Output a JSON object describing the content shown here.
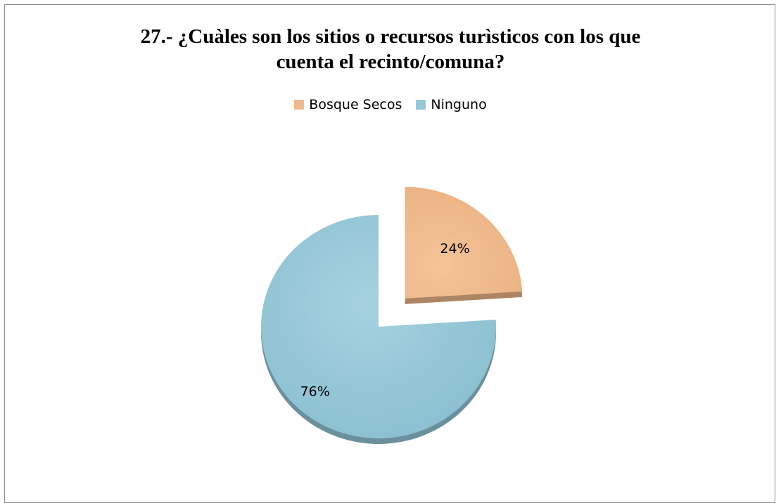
{
  "chart_data": {
    "type": "pie",
    "title_line1": "27.- ¿Cuàles son los sitios o recursos turìsticos con los que",
    "title_line2": "cuenta el recinto/comuna?",
    "slices": [
      {
        "label": "Bosque Secos",
        "value": 24,
        "data_label": "24%",
        "color": "#F1B98B",
        "exploded": true
      },
      {
        "label": "Ninguno",
        "value": 76,
        "data_label": "76%",
        "color": "#94C7D8",
        "exploded": false
      }
    ],
    "legend_position": "top"
  }
}
